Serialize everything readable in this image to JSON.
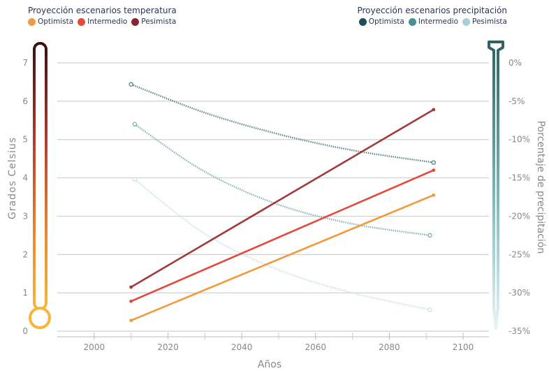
{
  "chart_data": {
    "type": "line",
    "x_label": "Años",
    "left_axis": {
      "label": "Grados Celsius",
      "ylim": [
        0,
        7
      ],
      "ticks": [
        "0",
        "1",
        "2",
        "3",
        "4",
        "5",
        "6",
        "7"
      ]
    },
    "right_axis": {
      "label": "Porcentaje de precipitación",
      "ylim": [
        -35,
        0
      ],
      "ticks": [
        "0%",
        "-5%",
        "-10%",
        "-15%",
        "-20%",
        "-25%",
        "-30%",
        "-35%"
      ]
    },
    "xlim": [
      1990,
      2107
    ],
    "x_ticks": [
      "2000",
      "2020",
      "2040",
      "2060",
      "2080",
      "2100"
    ],
    "legend_temperature": {
      "title": "Proyección escenarios temperatura",
      "items": [
        {
          "name": "Optimista",
          "color": "#f19a3e"
        },
        {
          "name": "Intermedio",
          "color": "#e24a3b"
        },
        {
          "name": "Pesimista",
          "color": "#8c2330"
        }
      ]
    },
    "legend_precipitation": {
      "title": "Proyección escenarios precipitación",
      "items": [
        {
          "name": "Optimista",
          "color": "#1d5055"
        },
        {
          "name": "Intermedio",
          "color": "#4a8e93"
        },
        {
          "name": "Pesimista",
          "color": "#a9d0d6"
        }
      ]
    },
    "temperature_series": [
      {
        "name": "Optimista",
        "color": "#f19a3e",
        "x": [
          2010,
          2092
        ],
        "y": [
          0.28,
          3.55
        ]
      },
      {
        "name": "Intermedio",
        "color": "#e24a3b",
        "x": [
          2010,
          2092
        ],
        "y": [
          0.78,
          4.2
        ]
      },
      {
        "name": "Pesimista",
        "color": "#a3393a",
        "x": [
          2010,
          2092
        ],
        "y": [
          1.15,
          5.78
        ]
      }
    ],
    "precipitation_series": [
      {
        "name": "Optimista",
        "color": "#5a8a8d",
        "x": [
          2010,
          2030,
          2050,
          2070,
          2092
        ],
        "y": [
          -2.8,
          -6.5,
          -9.3,
          -11.4,
          -13.0
        ]
      },
      {
        "name": "Intermedio",
        "color": "#86b3b7",
        "x": [
          2011,
          2030,
          2050,
          2070,
          2091
        ],
        "y": [
          -8.0,
          -14.2,
          -18.5,
          -21.0,
          -22.5
        ]
      },
      {
        "name": "Pesimista",
        "color": "#cfe3e6",
        "x": [
          2011,
          2030,
          2050,
          2070,
          2091
        ],
        "y": [
          -15.2,
          -22.3,
          -27.0,
          -30.0,
          -32.2
        ]
      }
    ]
  }
}
